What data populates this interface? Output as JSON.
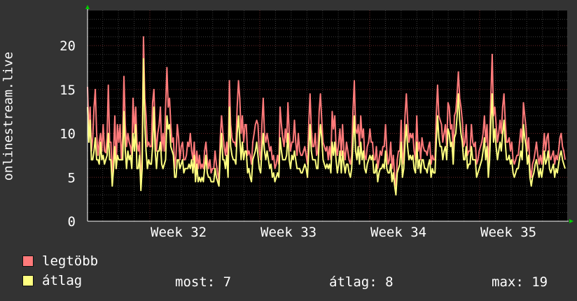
{
  "chart_data": {
    "type": "line",
    "ylabel": "onlinestream.live",
    "ylim": [
      0,
      24
    ],
    "yticks": [
      0,
      5,
      10,
      15,
      20
    ],
    "x_ticks": [
      "Week 32",
      "Week 33",
      "Week 34",
      "Week 35"
    ],
    "grid": true,
    "series": [
      {
        "name": "legtöbb",
        "color": "#ff7a7a",
        "values": [
          15.3,
          10,
          13,
          8,
          9.5,
          13,
          15,
          10,
          7.5,
          9,
          10,
          8,
          11,
          8,
          7.8,
          9.5,
          15.5,
          9,
          9,
          5,
          8,
          12,
          6,
          11,
          9,
          11,
          7,
          9.5,
          16.5,
          11,
          8.5,
          10,
          9,
          8.5,
          7.5,
          14,
          10,
          13,
          9,
          8,
          9,
          3.8,
          8,
          21,
          14,
          12,
          8.5,
          9,
          8.5,
          8.5,
          13.5,
          15,
          10.5,
          8,
          10,
          11,
          13,
          8,
          10,
          8,
          13,
          17.5,
          13,
          14,
          11,
          9,
          9.5,
          6,
          7.5,
          11,
          9.5,
          7,
          8.5,
          9,
          7,
          7,
          7.5,
          9,
          8.5,
          10,
          8,
          7,
          9,
          6,
          8,
          6,
          7.5,
          6,
          6.5,
          6,
          8,
          9,
          7,
          6,
          7,
          5.5,
          6,
          6,
          8,
          6.5,
          5.5,
          4.5,
          9.5,
          12,
          10,
          8.5,
          7.5,
          9,
          6.5,
          16,
          11,
          9.5,
          9,
          9,
          8.5,
          13,
          16,
          14,
          10,
          12,
          9,
          11,
          11,
          7.5,
          8,
          7.5,
          6.5,
          9,
          10,
          11,
          11.5,
          11,
          8,
          7,
          11,
          14,
          10,
          9,
          10,
          9,
          8,
          8.5,
          7,
          7.5,
          6,
          6.5,
          7.5,
          6.5,
          13,
          11,
          9.5,
          8.5,
          10.5,
          9,
          13.5,
          10,
          8,
          9,
          9,
          11.5,
          9,
          7.5,
          10,
          8,
          7.5,
          7.5,
          8,
          8.5,
          7.5,
          6.5,
          11,
          14.5,
          10.5,
          8.5,
          8.5,
          10,
          7.5,
          8,
          12.5,
          14.5,
          11.5,
          9,
          8.5,
          8,
          8.5,
          7,
          8.5,
          7,
          12.5,
          10.5,
          12,
          8.5,
          7.5,
          9,
          10.5,
          7.5,
          11,
          8,
          7,
          9,
          8,
          7,
          6.5,
          7.5,
          12.5,
          16,
          10.5,
          10,
          11,
          8.5,
          12,
          9.5,
          10.5,
          7.5,
          7,
          8.5,
          9,
          10.5,
          9,
          9,
          7,
          7,
          8.5,
          6,
          7,
          8,
          7.5,
          8.5,
          8.5,
          11,
          8,
          6.5,
          7,
          9,
          6,
          7.5,
          5,
          4,
          7,
          8,
          8,
          11.5,
          6.5,
          8,
          12,
          14.5,
          11.5,
          9,
          10,
          9.5,
          10,
          8,
          7,
          12,
          8,
          9,
          7,
          9.5,
          8.5,
          8,
          8,
          7.5,
          8.5,
          9,
          6.5,
          7.5,
          7,
          7,
          12,
          15.5,
          12,
          11.5,
          11,
          9,
          10,
          11,
          8.5,
          13.5,
          13,
          10.5,
          11,
          8,
          12,
          12.5,
          14.5,
          17,
          14,
          13,
          11.5,
          8.5,
          9,
          11,
          7.5,
          8,
          8,
          11,
          9,
          8.5,
          9,
          6.5,
          7,
          8,
          8.5,
          9,
          10,
          12,
          9,
          11,
          6.5,
          9,
          14.5,
          19,
          12,
          13,
          11,
          9,
          10,
          11.5,
          10,
          13,
          14.5,
          11.5,
          9,
          9,
          9.5,
          8,
          9,
          7,
          6.5,
          7,
          7.5,
          7.5,
          9,
          10.5,
          9,
          13.5,
          12,
          10.5,
          8,
          9.5,
          6,
          5,
          6.5,
          7,
          8,
          9,
          7.5,
          6.5,
          7.5,
          6.5,
          8,
          10,
          8,
          9.5,
          10,
          7.5,
          7,
          7.5,
          8,
          6.5,
          7.5,
          7,
          8,
          9.5,
          10,
          8.5,
          8,
          7
        ]
      },
      {
        "name": "átlag",
        "color": "#ffff80",
        "values": [
          13,
          9,
          11.5,
          7,
          7,
          8,
          9.5,
          7,
          7,
          6.5,
          9,
          7,
          7.5,
          6.5,
          7,
          7.5,
          10,
          7,
          7,
          4,
          6,
          8.5,
          6,
          7.5,
          7,
          7,
          7,
          7,
          12.5,
          8,
          6,
          8,
          7,
          7.5,
          6,
          10,
          8,
          11,
          6,
          6,
          7.5,
          3.5,
          6,
          18.5,
          11,
          8,
          6,
          7,
          6.5,
          6.5,
          8.5,
          13,
          8,
          6,
          8,
          8,
          9,
          6.5,
          6,
          6.5,
          7,
          12,
          10.5,
          11,
          8.5,
          8,
          7.5,
          5,
          5,
          7,
          7,
          6,
          6.5,
          7,
          5.5,
          6,
          6,
          6,
          6.5,
          6,
          7,
          5.5,
          7.5,
          4.5,
          6.5,
          4.5,
          5,
          4.5,
          5,
          4.5,
          6,
          7.5,
          5.5,
          5,
          5,
          4.5,
          4.5,
          4.5,
          6,
          5,
          4.5,
          4,
          7.5,
          10,
          7,
          7,
          6,
          7.5,
          5,
          13,
          8.5,
          7.5,
          7,
          7,
          6.5,
          10,
          12,
          9.5,
          7,
          9,
          7,
          8,
          8,
          5.5,
          6,
          5,
          4.5,
          7,
          7.5,
          8,
          9,
          7.5,
          6,
          5.5,
          8,
          10,
          8,
          7,
          8,
          7,
          6,
          6.5,
          5,
          5.5,
          4.5,
          5,
          5.5,
          5,
          9.5,
          8,
          7,
          7,
          7,
          7.5,
          10,
          7,
          6,
          7.5,
          7,
          8,
          7,
          6,
          6,
          6,
          5.5,
          5.5,
          6,
          6.5,
          6,
          5,
          8,
          11,
          8,
          7,
          7,
          7,
          6,
          6,
          9,
          11,
          9.5,
          7,
          6.5,
          6,
          6.5,
          6,
          6.5,
          5.5,
          9,
          7.5,
          9,
          7,
          5.5,
          6.5,
          8,
          5.5,
          8,
          6.5,
          5.5,
          6.5,
          6.5,
          5.5,
          5,
          6,
          9,
          12,
          8,
          7,
          8.5,
          6.5,
          9,
          7,
          8,
          6,
          5.5,
          6.5,
          7,
          7.5,
          7,
          7.5,
          5.5,
          5.5,
          6.5,
          4.5,
          5.5,
          6,
          6,
          6.5,
          6,
          8,
          6,
          5.5,
          5.5,
          6.5,
          4.5,
          5.5,
          4,
          3,
          5.5,
          6,
          6.5,
          9,
          5,
          6,
          9,
          11,
          8.5,
          7,
          7.5,
          7,
          7.5,
          6,
          5.5,
          9,
          6,
          7,
          5.5,
          7,
          7,
          6,
          6,
          5.5,
          6.5,
          7,
          5,
          6,
          5.5,
          5.5,
          9,
          12,
          9.5,
          8.5,
          8.5,
          7,
          8,
          8.5,
          7,
          10.5,
          10,
          8.5,
          9,
          6.5,
          9.5,
          10,
          12,
          14.5,
          11.5,
          10,
          9,
          7,
          7,
          8.5,
          6,
          6.5,
          6.5,
          8.5,
          7,
          7,
          7,
          5,
          5.5,
          6,
          6.5,
          7,
          8,
          9.5,
          7,
          8.5,
          5,
          7,
          11.5,
          14.5,
          9,
          10.5,
          8.5,
          7,
          8,
          9,
          8,
          10,
          11.5,
          9,
          7,
          7,
          7.5,
          6.5,
          7,
          5.5,
          5,
          5.5,
          6,
          6,
          7,
          8,
          7,
          11,
          9.5,
          8.5,
          6.5,
          7.5,
          5,
          4,
          5,
          5.5,
          6.5,
          7,
          6,
          5,
          6,
          5,
          6,
          8,
          6.5,
          7,
          8,
          6,
          5.5,
          6,
          6.5,
          5,
          6,
          5.5,
          6.5,
          7.5,
          8,
          7,
          6.5,
          6
        ]
      }
    ]
  },
  "legend": {
    "max_label": "legtöbb",
    "avg_label": "átlag"
  },
  "stats": {
    "now": "most: 7",
    "avg": "átlag: 8",
    "max": "max: 19"
  }
}
